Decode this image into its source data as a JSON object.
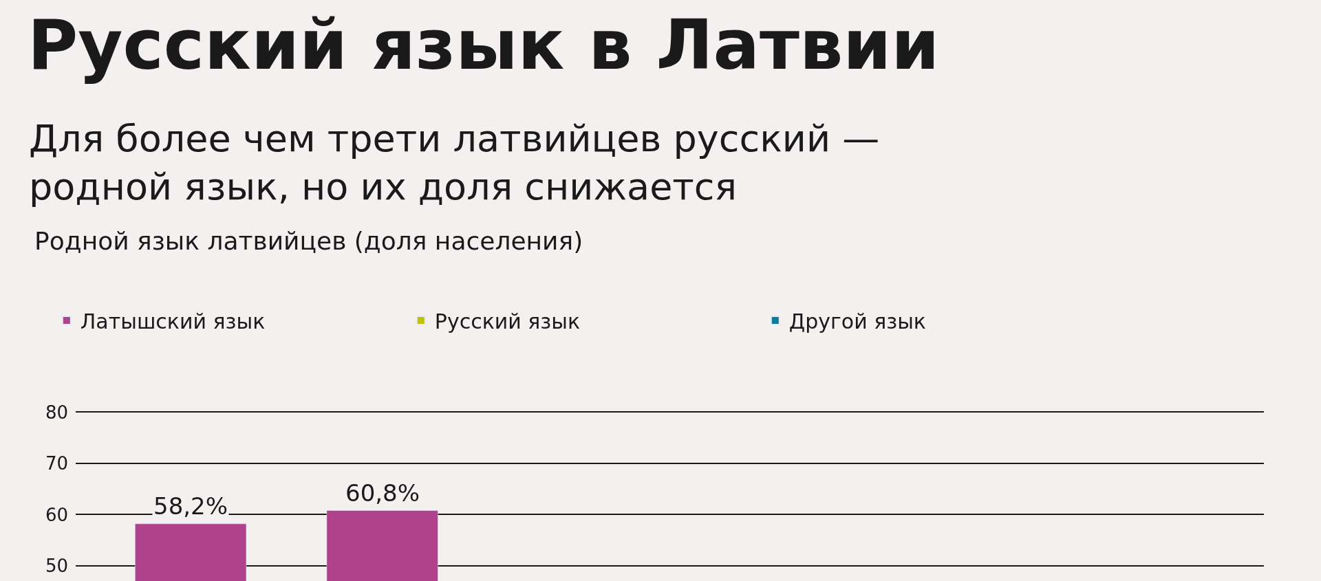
{
  "chart_data": {
    "type": "bar",
    "title": "Русский язык в Латвии",
    "subtitle": "Для более чем трети латвийцев русский —\nродной язык, но их доля снижается",
    "annotations": [
      "Родной язык латвийцев (доля населения)"
    ],
    "categories": [
      null,
      null,
      null,
      null,
      null,
      null
    ],
    "series": [
      {
        "name": "Латышский язык",
        "color": "#b0418b",
        "values": [
          58.2,
          60.8,
          null,
          null,
          null,
          null
        ],
        "value_labels": [
          "58,2%",
          "60,8%",
          null,
          null,
          null,
          null
        ]
      },
      {
        "name": "Русский язык",
        "color": "#c2c10a",
        "values": [
          null,
          null,
          null,
          null,
          null,
          null
        ]
      },
      {
        "name": "Другой язык",
        "color": "#0e7b9c",
        "values": [
          null,
          null,
          null,
          null,
          null,
          null
        ]
      }
    ],
    "ylim": [
      47,
      80
    ],
    "yticks": [
      50,
      60,
      70,
      80
    ],
    "grid": "y",
    "legend": "top"
  }
}
